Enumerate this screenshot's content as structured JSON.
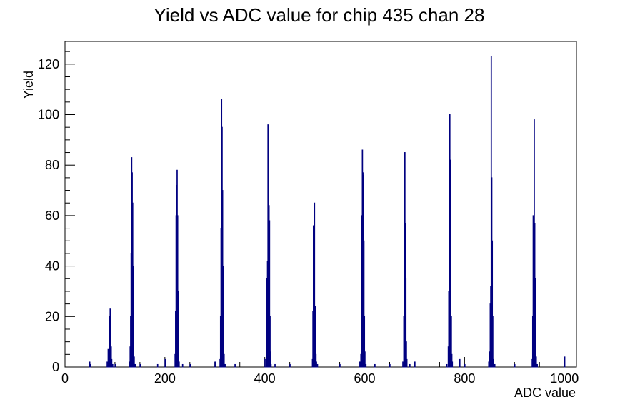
{
  "chart_data": {
    "type": "histogram",
    "title": "Yield vs ADC value for chip 435 chan 28",
    "xlabel": "ADC value",
    "ylabel": "Yield",
    "xlim": [
      0,
      1024
    ],
    "ylim": [
      0,
      129
    ],
    "x_ticks": [
      0,
      200,
      400,
      600,
      800,
      1000
    ],
    "x_tick_labels": [
      "0",
      "200",
      "400",
      "600",
      "800",
      "1000"
    ],
    "y_ticks": [
      0,
      20,
      40,
      60,
      80,
      100,
      120
    ],
    "y_tick_labels": [
      "0",
      "20",
      "40",
      "60",
      "80",
      "100",
      "120"
    ],
    "grid": false,
    "line_color": "#000080",
    "bins": [
      {
        "x": 48,
        "y": 1
      },
      {
        "x": 49,
        "y": 2
      },
      {
        "x": 50,
        "y": 1
      },
      {
        "x": 84,
        "y": 2
      },
      {
        "x": 86,
        "y": 7
      },
      {
        "x": 88,
        "y": 18
      },
      {
        "x": 89,
        "y": 20
      },
      {
        "x": 90,
        "y": 23
      },
      {
        "x": 91,
        "y": 17
      },
      {
        "x": 92,
        "y": 8
      },
      {
        "x": 93,
        "y": 3
      },
      {
        "x": 95,
        "y": 1
      },
      {
        "x": 100,
        "y": 1
      },
      {
        "x": 128,
        "y": 2
      },
      {
        "x": 130,
        "y": 8
      },
      {
        "x": 131,
        "y": 20
      },
      {
        "x": 132,
        "y": 45
      },
      {
        "x": 133,
        "y": 83
      },
      {
        "x": 134,
        "y": 77
      },
      {
        "x": 135,
        "y": 65
      },
      {
        "x": 136,
        "y": 40
      },
      {
        "x": 137,
        "y": 15
      },
      {
        "x": 138,
        "y": 4
      },
      {
        "x": 140,
        "y": 1
      },
      {
        "x": 150,
        "y": 1
      },
      {
        "x": 185,
        "y": 1
      },
      {
        "x": 200,
        "y": 3
      },
      {
        "x": 220,
        "y": 5
      },
      {
        "x": 221,
        "y": 22
      },
      {
        "x": 222,
        "y": 60
      },
      {
        "x": 223,
        "y": 72
      },
      {
        "x": 224,
        "y": 78
      },
      {
        "x": 225,
        "y": 60
      },
      {
        "x": 226,
        "y": 30
      },
      {
        "x": 227,
        "y": 8
      },
      {
        "x": 228,
        "y": 2
      },
      {
        "x": 235,
        "y": 1
      },
      {
        "x": 250,
        "y": 1
      },
      {
        "x": 300,
        "y": 2
      },
      {
        "x": 310,
        "y": 3
      },
      {
        "x": 311,
        "y": 20
      },
      {
        "x": 312,
        "y": 55
      },
      {
        "x": 313,
        "y": 106
      },
      {
        "x": 314,
        "y": 95
      },
      {
        "x": 315,
        "y": 70
      },
      {
        "x": 316,
        "y": 40
      },
      {
        "x": 317,
        "y": 15
      },
      {
        "x": 318,
        "y": 5
      },
      {
        "x": 320,
        "y": 1
      },
      {
        "x": 340,
        "y": 1
      },
      {
        "x": 400,
        "y": 3
      },
      {
        "x": 403,
        "y": 8
      },
      {
        "x": 404,
        "y": 35
      },
      {
        "x": 405,
        "y": 42
      },
      {
        "x": 406,
        "y": 96
      },
      {
        "x": 407,
        "y": 60
      },
      {
        "x": 408,
        "y": 64
      },
      {
        "x": 409,
        "y": 58
      },
      {
        "x": 410,
        "y": 20
      },
      {
        "x": 411,
        "y": 6
      },
      {
        "x": 412,
        "y": 1
      },
      {
        "x": 420,
        "y": 1
      },
      {
        "x": 450,
        "y": 1
      },
      {
        "x": 495,
        "y": 3
      },
      {
        "x": 496,
        "y": 22
      },
      {
        "x": 497,
        "y": 56
      },
      {
        "x": 498,
        "y": 40
      },
      {
        "x": 499,
        "y": 65
      },
      {
        "x": 500,
        "y": 20
      },
      {
        "x": 501,
        "y": 24
      },
      {
        "x": 502,
        "y": 5
      },
      {
        "x": 503,
        "y": 2
      },
      {
        "x": 505,
        "y": 1
      },
      {
        "x": 550,
        "y": 1
      },
      {
        "x": 590,
        "y": 2
      },
      {
        "x": 592,
        "y": 5
      },
      {
        "x": 593,
        "y": 28
      },
      {
        "x": 594,
        "y": 60
      },
      {
        "x": 595,
        "y": 86
      },
      {
        "x": 596,
        "y": 77
      },
      {
        "x": 597,
        "y": 76
      },
      {
        "x": 598,
        "y": 50
      },
      {
        "x": 599,
        "y": 20
      },
      {
        "x": 600,
        "y": 6
      },
      {
        "x": 602,
        "y": 1
      },
      {
        "x": 620,
        "y": 1
      },
      {
        "x": 650,
        "y": 1
      },
      {
        "x": 676,
        "y": 2
      },
      {
        "x": 678,
        "y": 20
      },
      {
        "x": 679,
        "y": 50
      },
      {
        "x": 680,
        "y": 85
      },
      {
        "x": 681,
        "y": 57
      },
      {
        "x": 682,
        "y": 35
      },
      {
        "x": 683,
        "y": 10
      },
      {
        "x": 684,
        "y": 3
      },
      {
        "x": 690,
        "y": 1
      },
      {
        "x": 700,
        "y": 2
      },
      {
        "x": 764,
        "y": 1
      },
      {
        "x": 767,
        "y": 8
      },
      {
        "x": 768,
        "y": 30
      },
      {
        "x": 769,
        "y": 65
      },
      {
        "x": 770,
        "y": 100
      },
      {
        "x": 771,
        "y": 82
      },
      {
        "x": 772,
        "y": 50
      },
      {
        "x": 773,
        "y": 20
      },
      {
        "x": 774,
        "y": 5
      },
      {
        "x": 775,
        "y": 2
      },
      {
        "x": 790,
        "y": 3
      },
      {
        "x": 800,
        "y": 1
      },
      {
        "x": 848,
        "y": 2
      },
      {
        "x": 850,
        "y": 6
      },
      {
        "x": 851,
        "y": 25
      },
      {
        "x": 852,
        "y": 32
      },
      {
        "x": 853,
        "y": 123
      },
      {
        "x": 854,
        "y": 75
      },
      {
        "x": 855,
        "y": 50
      },
      {
        "x": 856,
        "y": 20
      },
      {
        "x": 857,
        "y": 3
      },
      {
        "x": 860,
        "y": 1
      },
      {
        "x": 900,
        "y": 1
      },
      {
        "x": 935,
        "y": 3
      },
      {
        "x": 936,
        "y": 20
      },
      {
        "x": 937,
        "y": 60
      },
      {
        "x": 938,
        "y": 45
      },
      {
        "x": 939,
        "y": 98
      },
      {
        "x": 940,
        "y": 57
      },
      {
        "x": 941,
        "y": 35
      },
      {
        "x": 942,
        "y": 15
      },
      {
        "x": 943,
        "y": 4
      },
      {
        "x": 945,
        "y": 1
      },
      {
        "x": 1000,
        "y": 4
      }
    ]
  }
}
